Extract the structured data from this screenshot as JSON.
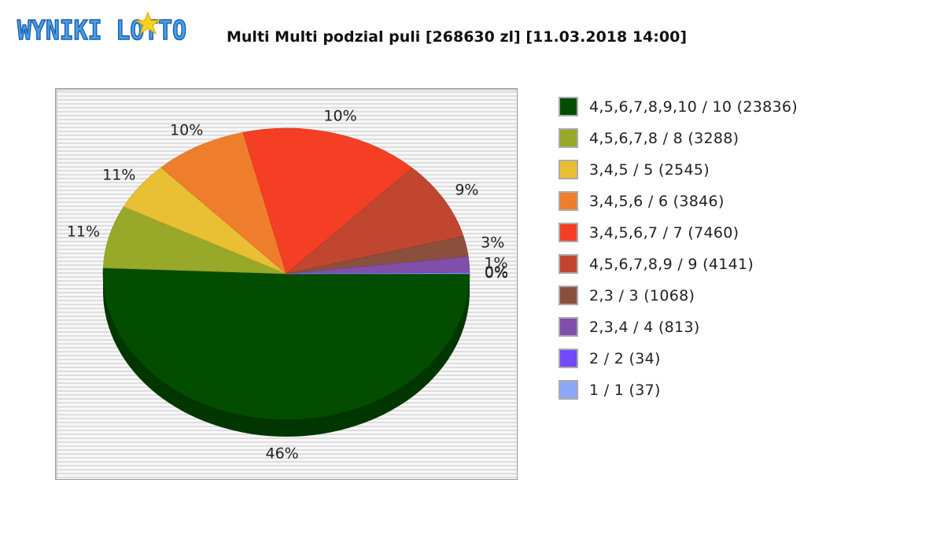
{
  "header": {
    "logo_text": "WYNIKI LOTTO",
    "logo_colors": {
      "fill": "#4aa0e6",
      "outline": "#1d5fae",
      "star": "#f5d21f"
    }
  },
  "chart_data": {
    "type": "pie",
    "title": "Multi Multi podzial puli [268630 zl] [11.03.2018 14:00]",
    "legend_position": "right",
    "slices": [
      {
        "label": "4,5,6,7,8,9,10 / 10 (23836)",
        "value": 23836,
        "percent_label": "46%",
        "color": "#034d01"
      },
      {
        "label": "4,5,6,7,8 / 8 (3288)",
        "value": 3288,
        "percent_label": "11%",
        "color": "#98a829"
      },
      {
        "label": "3,4,5 / 5 (2545)",
        "value": 2545,
        "percent_label": "11%",
        "color": "#e9bf33"
      },
      {
        "label": "3,4,5,6 / 6 (3846)",
        "value": 3846,
        "percent_label": "10%",
        "color": "#ef7e2c"
      },
      {
        "label": "3,4,5,6,7 / 7 (7460)",
        "value": 7460,
        "percent_label": "10%",
        "color": "#f43f25"
      },
      {
        "label": "4,5,6,7,8,9 / 9 (4141)",
        "value": 4141,
        "percent_label": "9%",
        "color": "#c0462f"
      },
      {
        "label": "2,3 / 3 (1068)",
        "value": 1068,
        "percent_label": "3%",
        "color": "#8b4f3d"
      },
      {
        "label": "2,3,4 / 4 (813)",
        "value": 813,
        "percent_label": "1%",
        "color": "#7f4fa9"
      },
      {
        "label": "2 / 2 (34)",
        "value": 34,
        "percent_label": "0%",
        "color": "#7249fb"
      },
      {
        "label": "1 / 1 (37)",
        "value": 37,
        "percent_label": "0%",
        "color": "#8da8f8"
      }
    ]
  }
}
